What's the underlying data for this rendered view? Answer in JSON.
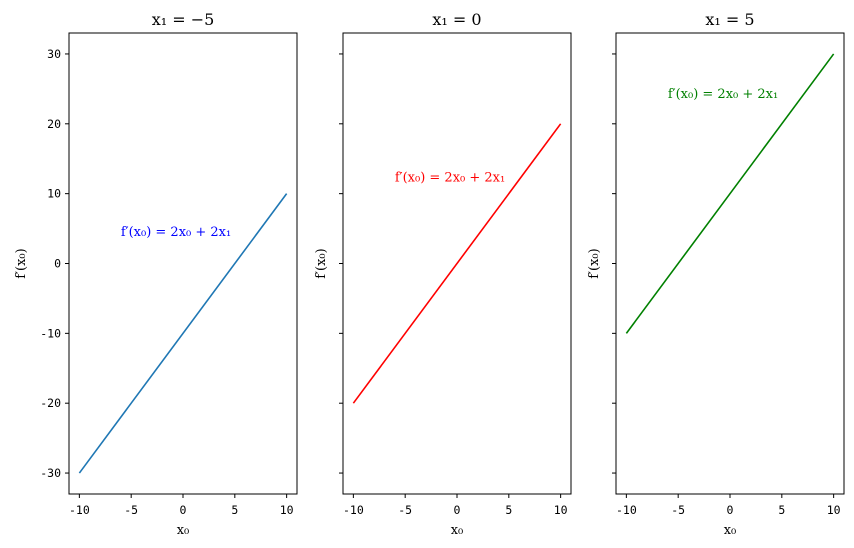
{
  "chart_data": [
    {
      "type": "line",
      "title": "x₁ = −5",
      "xlabel": "x₀",
      "ylabel": "f′(x₀)",
      "xlim": [
        -11,
        11
      ],
      "ylim": [
        -33,
        33
      ],
      "x_ticks": [
        -10,
        -5,
        0,
        5,
        10
      ],
      "y_ticks": [
        -30,
        -20,
        -10,
        0,
        10,
        20,
        30
      ],
      "series": [
        {
          "color": "#1f77b4",
          "x": [
            -10,
            10
          ],
          "y": [
            -30,
            10
          ]
        }
      ],
      "annotation": {
        "text": "f′(x₀) = 2x₀ + 2x₁",
        "x": -6,
        "y": 4.5,
        "color": "#0000ff"
      },
      "show_y_tick_labels": true
    },
    {
      "type": "line",
      "title": "x₁ = 0",
      "xlabel": "x₀",
      "ylabel": "f′(x₀)",
      "xlim": [
        -11,
        11
      ],
      "ylim": [
        -33,
        33
      ],
      "x_ticks": [
        -10,
        -5,
        0,
        5,
        10
      ],
      "y_ticks": [
        -30,
        -20,
        -10,
        0,
        10,
        20,
        30
      ],
      "series": [
        {
          "color": "#ff0000",
          "x": [
            -10,
            10
          ],
          "y": [
            -20,
            20
          ]
        }
      ],
      "annotation": {
        "text": "f′(x₀) = 2x₀ + 2x₁",
        "x": -6,
        "y": 12.3,
        "color": "#ff0000"
      },
      "show_y_tick_labels": false
    },
    {
      "type": "line",
      "title": "x₁ = 5",
      "xlabel": "x₀",
      "ylabel": "f′(x₀)",
      "xlim": [
        -11,
        11
      ],
      "ylim": [
        -33,
        33
      ],
      "x_ticks": [
        -10,
        -5,
        0,
        5,
        10
      ],
      "y_ticks": [
        -30,
        -20,
        -10,
        0,
        10,
        20,
        30
      ],
      "series": [
        {
          "color": "#008000",
          "x": [
            -10,
            10
          ],
          "y": [
            -10,
            30
          ]
        }
      ],
      "annotation": {
        "text": "f′(x₀) = 2x₀ + 2x₁",
        "x": -6,
        "y": 24.3,
        "color": "#008000"
      },
      "show_y_tick_labels": false
    }
  ]
}
